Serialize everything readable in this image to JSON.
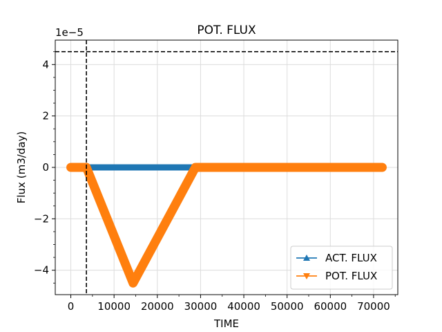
{
  "chart_data": {
    "type": "line",
    "title": "POT. FLUX",
    "xlabel": "TIME",
    "ylabel": "Flux (m3/day)",
    "y_offset_label": "1e−5",
    "xlim": [
      -3600,
      75600
    ],
    "ylim": [
      -4.95,
      4.95
    ],
    "xticks": [
      0,
      10000,
      20000,
      30000,
      40000,
      50000,
      60000,
      70000
    ],
    "xtick_labels": [
      "0",
      "10000",
      "20000",
      "30000",
      "40000",
      "50000",
      "60000",
      "70000"
    ],
    "yticks": [
      -4,
      -2,
      0,
      2,
      4
    ],
    "ytick_labels": [
      "−4",
      "−2",
      "0",
      "2",
      "4"
    ],
    "grid": true,
    "legend_position": "lower-right",
    "series": [
      {
        "name": "ACT. FLUX",
        "color": "#1f77b4",
        "marker": "triangle-up",
        "x": [
          0,
          72000
        ],
        "y": [
          0,
          0
        ]
      },
      {
        "name": "POT. FLUX",
        "color": "#ff7f0e",
        "marker": "triangle-down",
        "x": [
          0,
          3600,
          14400,
          28800,
          72000
        ],
        "y": [
          0,
          0,
          -4.5,
          0,
          0
        ]
      }
    ],
    "reference_lines": [
      {
        "orientation": "vertical",
        "x": 3600,
        "color": "#000000",
        "style": "dashed"
      },
      {
        "orientation": "horizontal",
        "y": 4.5,
        "color": "#000000",
        "style": "dashed"
      }
    ]
  }
}
